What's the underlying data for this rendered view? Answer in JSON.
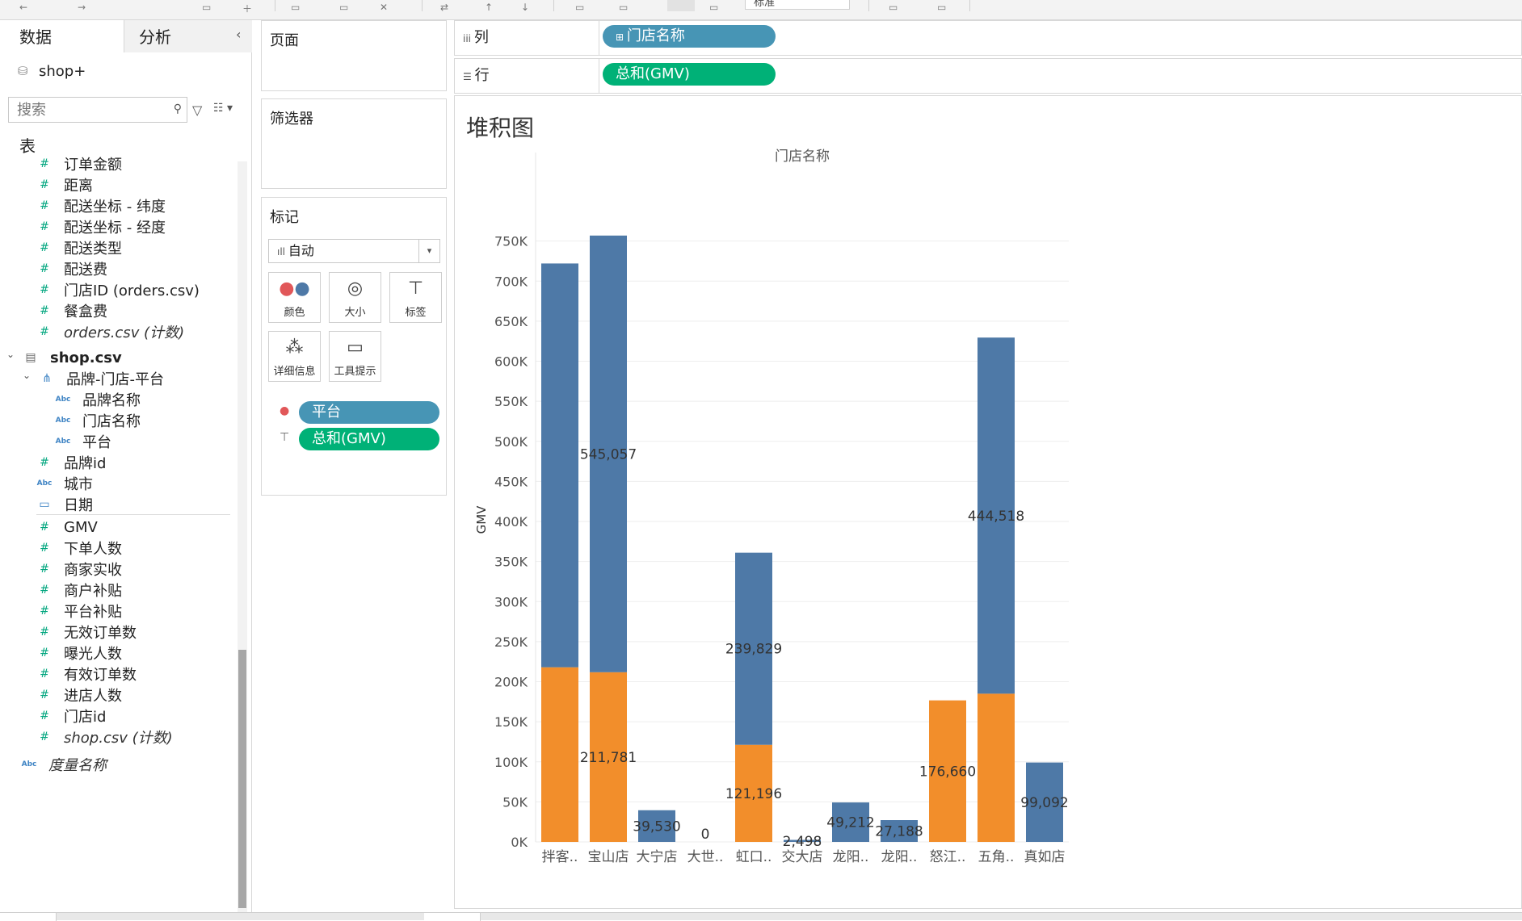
{
  "toolbar": {
    "dropdown_value": "标准"
  },
  "left_panel": {
    "tab_data": "数据",
    "tab_analysis": "分析",
    "collapse_glyph": "‹",
    "datasource": "shop+",
    "search_placeholder": "搜索",
    "section_title": "表",
    "orders_fields": [
      {
        "label": "订单金额",
        "type": "measure"
      },
      {
        "label": "距离",
        "type": "measure"
      },
      {
        "label": "配送坐标 - 纬度",
        "type": "measure"
      },
      {
        "label": "配送坐标 - 经度",
        "type": "measure"
      },
      {
        "label": "配送类型",
        "type": "measure"
      },
      {
        "label": "配送费",
        "type": "measure"
      },
      {
        "label": "门店ID (orders.csv)",
        "type": "measure"
      },
      {
        "label": "餐盒费",
        "type": "measure"
      },
      {
        "label": "orders.csv (计数)",
        "type": "measure-count"
      }
    ],
    "shop_table": "shop.csv",
    "hierarchy": "品牌-门店-平台",
    "hierarchy_fields": [
      "品牌名称",
      "门店名称",
      "平台"
    ],
    "shop_dims": [
      {
        "label": "品牌id",
        "type": "measure"
      },
      {
        "label": "城市",
        "type": "string"
      },
      {
        "label": "日期",
        "type": "date"
      }
    ],
    "shop_measures": [
      "GMV",
      "下单人数",
      "商家实收",
      "商户补贴",
      "平台补贴",
      "无效订单数",
      "曝光人数",
      "有效订单数",
      "进店人数",
      "门店id"
    ],
    "shop_count": "shop.csv (计数)",
    "measure_names": "度量名称"
  },
  "cards": {
    "pages": "页面",
    "filters": "筛选器",
    "marks": "标记",
    "mark_type": "自动",
    "buttons": [
      "颜色",
      "大小",
      "标签",
      "详细信息",
      "工具提示"
    ],
    "color_pill": "平台",
    "label_pill": "总和(GMV)"
  },
  "shelves": {
    "columns_label": "列",
    "columns_pill": "门店名称",
    "rows_label": "行",
    "rows_pill": "总和(GMV)"
  },
  "colors": {
    "series_blue": "#4e79a7",
    "series_orange": "#f28e2b",
    "pill_blue": "#4795b5",
    "pill_green": "#00b177"
  },
  "chart_data": {
    "type": "bar",
    "stacked": true,
    "title": "堆积图",
    "header": "门店名称",
    "ylabel": "GMV",
    "ylim": [
      0,
      800000
    ],
    "yticks": [
      "0K",
      "50K",
      "100K",
      "150K",
      "200K",
      "250K",
      "300K",
      "350K",
      "400K",
      "450K",
      "500K",
      "550K",
      "600K",
      "650K",
      "700K",
      "750K"
    ],
    "categories": [
      "拌客..",
      "宝山店",
      "大宁店",
      "大世..",
      "虹口..",
      "交大店",
      "龙阳..",
      "龙阳..",
      "怒江..",
      "五角..",
      "真如店"
    ],
    "series": [
      {
        "color": "#f28e2b",
        "values": [
          218000,
          211781,
          0,
          0,
          121196,
          0,
          0,
          0,
          176660,
          185000,
          0
        ]
      },
      {
        "color": "#4e79a7",
        "values": [
          504000,
          545057,
          39530,
          0,
          239829,
          2498,
          49212,
          27188,
          0,
          444518,
          99092
        ]
      }
    ],
    "labels": [
      {
        "cat": 1,
        "value": 545057,
        "text": "545,057"
      },
      {
        "cat": 1,
        "value": 211781,
        "text": "211,781"
      },
      {
        "cat": 2,
        "value": 39530,
        "text": "39,530"
      },
      {
        "cat": 3,
        "value": 0,
        "text": "0"
      },
      {
        "cat": 4,
        "value": 239829,
        "text": "239,829"
      },
      {
        "cat": 4,
        "value": 121196,
        "text": "121,196"
      },
      {
        "cat": 5,
        "value": 2498,
        "text": "2,498"
      },
      {
        "cat": 6,
        "value": 49212,
        "text": "49,212"
      },
      {
        "cat": 7,
        "value": 27188,
        "text": "27,188"
      },
      {
        "cat": 8,
        "value": 176660,
        "text": "176,660"
      },
      {
        "cat": 9,
        "value": 444518,
        "text": "444,518"
      },
      {
        "cat": 10,
        "value": 99092,
        "text": "99,092"
      }
    ]
  }
}
